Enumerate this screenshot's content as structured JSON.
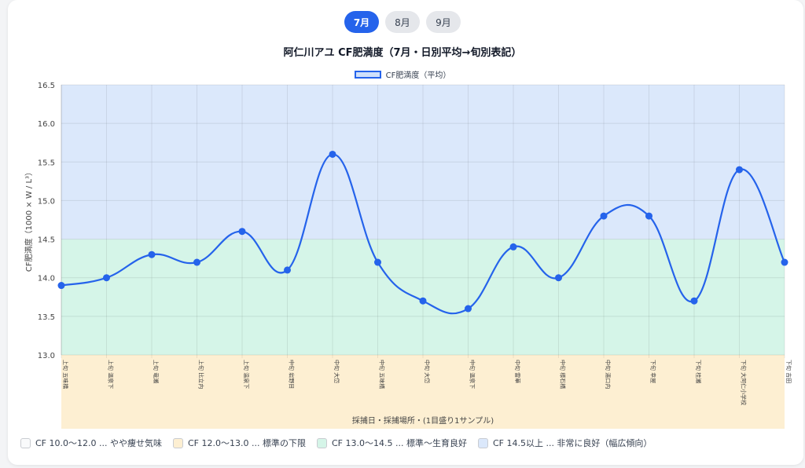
{
  "tabs": [
    {
      "label": "7月",
      "active": true
    },
    {
      "label": "8月",
      "active": false
    },
    {
      "label": "9月",
      "active": false
    }
  ],
  "title": "阿仁川アユ CF肥満度（7月・日別平均→旬別表記）",
  "legend_top": {
    "label": "CF肥満度（平均）"
  },
  "bands_legend": [
    {
      "label": "CF 10.0〜12.0 ... やや痩せ気味",
      "color": "#f9fafb"
    },
    {
      "label": "CF 12.0〜13.0 ... 標準の下限",
      "color": "#fdefd2"
    },
    {
      "label": "CF 13.0〜14.5 ... 標準〜生育良好",
      "color": "#d5f5e8"
    },
    {
      "label": "CF 14.5以上 ... 非常に良好（幅広傾向）",
      "color": "#dbe8fb"
    }
  ],
  "chart_data": {
    "type": "line",
    "title": "阿仁川アユ CF肥満度（7月・日別平均→旬別表記）",
    "xlabel": "採捕日・採捕場所・(1目盛り1サンプル)",
    "ylabel": "CF肥満度（1000 × W / L³）",
    "ylim": [
      13.0,
      16.5
    ],
    "yticks": [
      "16.5",
      "16.0",
      "15.5",
      "15.0",
      "14.5",
      "14.0",
      "13.5",
      "13.0"
    ],
    "grid": true,
    "legend_position": "top",
    "categories": [
      "上旬 五味橋",
      "上旬 温泉下",
      "上旬 竜瀬",
      "上旬 比立内",
      "上旬 温泉下",
      "中旬 岩野目",
      "中旬 大岱",
      "中旬 五味橋",
      "中旬 大岱",
      "中旬 温泉下",
      "中旬 雷華",
      "中旬 様石橋",
      "中旬 湯口内",
      "下旬 幸屋",
      "下旬 桂瀬",
      "下旬 大阿仁小学校",
      "下旬 吉田"
    ],
    "series": [
      {
        "name": "CF肥満度（平均）",
        "color": "#2563eb",
        "values": [
          13.9,
          14.0,
          14.3,
          14.2,
          14.6,
          14.1,
          15.6,
          14.2,
          13.7,
          13.6,
          14.4,
          14.0,
          14.8,
          14.8,
          13.7,
          15.4,
          14.2
        ]
      }
    ]
  }
}
